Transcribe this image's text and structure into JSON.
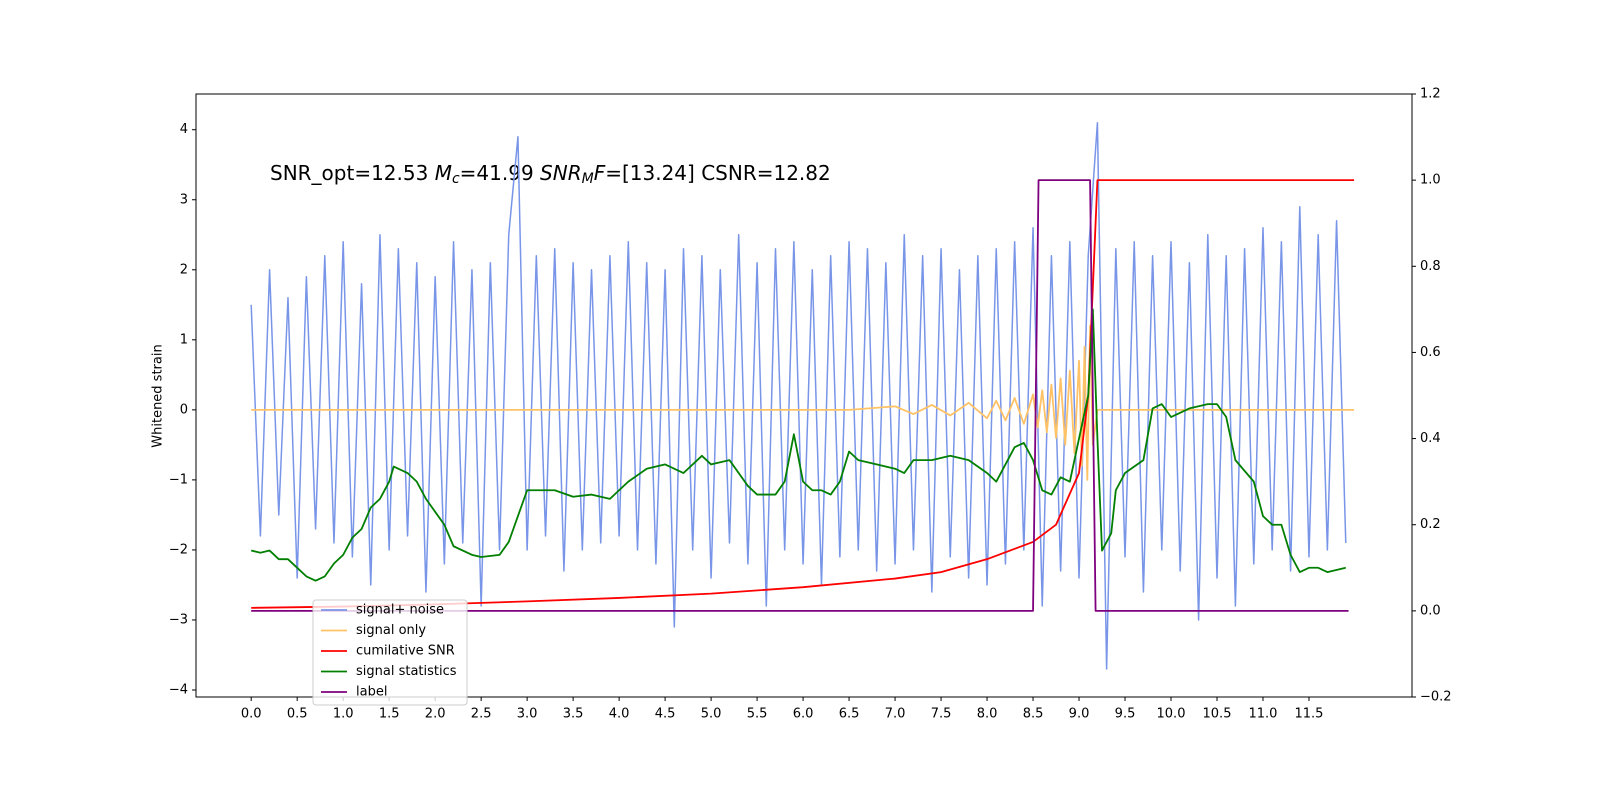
{
  "chart_data": {
    "type": "line",
    "ylabel": "Whitened strain",
    "annotation_parts": [
      "SNR_opt=12.53 ",
      "M",
      "c",
      "=41.99 ",
      "SNR",
      "M",
      "F",
      "=[13.24] CSNR=12.82"
    ],
    "xlim": [
      -0.6,
      12.62
    ],
    "ylim": [
      -4.1,
      4.51
    ],
    "y2lim": [
      -0.2,
      1.2
    ],
    "xticks": [
      {
        "value": 0,
        "label": "0.0"
      },
      0.5,
      {
        "value": 1,
        "label": "1.0"
      },
      1.5,
      {
        "value": 2,
        "label": "2.0"
      },
      2.5,
      {
        "value": 3,
        "label": "3.0"
      },
      3.5,
      {
        "value": 4,
        "label": "4.0"
      },
      4.5,
      {
        "value": 5,
        "label": "5.0"
      },
      5.5,
      {
        "value": 6,
        "label": "6.0"
      },
      6.5,
      {
        "value": 7,
        "label": "7.0"
      },
      7.5,
      {
        "value": 8,
        "label": "8.0"
      },
      8.5,
      {
        "value": 9,
        "label": "9.0"
      },
      9.5,
      {
        "value": 10,
        "label": "10.0"
      },
      10.5,
      {
        "value": 11,
        "label": "11.0"
      },
      11.5
    ],
    "yticks": [
      {
        "value": -4,
        "label": "−4"
      },
      {
        "value": -3,
        "label": "−3"
      },
      {
        "value": -2,
        "label": "−2"
      },
      {
        "value": -1,
        "label": "−1"
      },
      0,
      1,
      2,
      3,
      4
    ],
    "y2ticks": [
      {
        "value": -0.2,
        "label": "−0.2"
      },
      {
        "value": 0,
        "label": "0.0"
      },
      0.2,
      0.4,
      0.6,
      0.8,
      {
        "value": 1,
        "label": "1.0"
      },
      1.2
    ],
    "legend": "lower left",
    "series": [
      {
        "name": "signal+ noise",
        "color": "#7895e8",
        "axis": "y",
        "x": [
          0,
          0.1,
          0.2,
          0.3,
          0.4,
          0.5,
          0.6,
          0.7,
          0.8,
          0.9,
          1,
          1.1,
          1.2,
          1.3,
          1.4,
          1.5,
          1.6,
          1.7,
          1.8,
          1.9,
          2,
          2.1,
          2.2,
          2.3,
          2.4,
          2.5,
          2.6,
          2.7,
          2.8,
          2.9,
          3,
          3.1,
          3.2,
          3.3,
          3.4,
          3.5,
          3.6,
          3.7,
          3.8,
          3.9,
          4,
          4.1,
          4.2,
          4.3,
          4.4,
          4.5,
          4.6,
          4.7,
          4.8,
          4.9,
          5,
          5.1,
          5.2,
          5.3,
          5.4,
          5.5,
          5.6,
          5.7,
          5.8,
          5.9,
          6,
          6.1,
          6.2,
          6.3,
          6.4,
          6.5,
          6.6,
          6.7,
          6.8,
          6.9,
          7,
          7.1,
          7.2,
          7.3,
          7.4,
          7.5,
          7.6,
          7.7,
          7.8,
          7.9,
          8,
          8.1,
          8.2,
          8.3,
          8.4,
          8.5,
          8.6,
          8.7,
          8.8,
          8.9,
          9,
          9.1,
          9.2,
          9.3,
          9.4,
          9.5,
          9.6,
          9.7,
          9.8,
          9.9,
          10,
          10.1,
          10.2,
          10.3,
          10.4,
          10.5,
          10.6,
          10.7,
          10.8,
          10.9,
          11,
          11.1,
          11.2,
          11.3,
          11.4,
          11.5,
          11.6,
          11.7,
          11.8,
          11.9
        ],
        "values": [
          1.5,
          -1.8,
          2.0,
          -1.5,
          1.6,
          -2.4,
          1.9,
          -1.7,
          2.2,
          -1.9,
          2.4,
          -2.1,
          1.8,
          -2.5,
          2.5,
          -2.0,
          2.3,
          -1.8,
          2.1,
          -2.6,
          1.9,
          -2.2,
          2.4,
          -1.9,
          2.0,
          -2.8,
          2.1,
          -2.0,
          2.5,
          3.9,
          -2.0,
          2.2,
          -1.8,
          2.3,
          -2.3,
          2.1,
          -2.0,
          2.0,
          -1.9,
          2.2,
          -1.8,
          2.4,
          -2.0,
          2.1,
          -2.2,
          2.0,
          -3.1,
          2.3,
          -2.0,
          2.2,
          -2.4,
          2.0,
          -1.9,
          2.5,
          -2.2,
          2.1,
          -2.8,
          2.3,
          -2.0,
          2.4,
          -2.2,
          2.0,
          -2.5,
          2.2,
          -2.1,
          2.4,
          -2.0,
          2.3,
          -2.3,
          2.1,
          -2.2,
          2.5,
          -2.0,
          2.2,
          -2.6,
          2.3,
          -2.1,
          2.0,
          -2.4,
          2.2,
          -2.5,
          2.3,
          -2.2,
          2.4,
          -2.0,
          2.6,
          -2.8,
          2.2,
          -2.3,
          2.4,
          -2.4,
          2.2,
          4.1,
          -3.7,
          2.3,
          -2.1,
          2.4,
          -2.6,
          2.2,
          -2.0,
          2.4,
          -2.3,
          2.1,
          -3.0,
          2.5,
          -2.4,
          2.2,
          -2.8,
          2.3,
          -2.2,
          2.6,
          -2.0,
          2.4,
          -2.3,
          2.9,
          -2.1,
          2.5,
          -2.0,
          2.7,
          -1.9
        ]
      },
      {
        "name": "signal only",
        "color": "#ffc266",
        "axis": "y",
        "x": [
          0,
          6.5,
          7.0,
          7.2,
          7.4,
          7.6,
          7.8,
          8.0,
          8.1,
          8.2,
          8.3,
          8.4,
          8.5,
          8.55,
          8.6,
          8.65,
          8.7,
          8.75,
          8.8,
          8.85,
          8.9,
          8.95,
          9.0,
          9.03,
          9.06,
          9.09,
          9.12,
          9.15,
          9.2,
          11.99
        ],
        "values": [
          0,
          0,
          0.05,
          -0.06,
          0.07,
          -0.08,
          0.1,
          -0.12,
          0.13,
          -0.15,
          0.17,
          -0.2,
          0.22,
          -0.25,
          0.28,
          -0.32,
          0.36,
          -0.4,
          0.45,
          -0.5,
          0.56,
          -0.62,
          0.7,
          -0.8,
          0.9,
          -1.0,
          1.2,
          -0.5,
          0,
          0
        ]
      },
      {
        "name": "cumilative SNR",
        "color": "#ff0000",
        "axis": "y2",
        "x": [
          0,
          1,
          2,
          3,
          4,
          5,
          6,
          7,
          7.5,
          8,
          8.5,
          8.75,
          9.0,
          9.1,
          9.15,
          9.2,
          11.99
        ],
        "values": [
          0.007,
          0.01,
          0.015,
          0.022,
          0.03,
          0.04,
          0.055,
          0.075,
          0.09,
          0.12,
          0.16,
          0.2,
          0.32,
          0.5,
          0.75,
          1.0,
          1.0
        ]
      },
      {
        "name": "signal statistics",
        "color": "#007f00",
        "axis": "y2",
        "x": [
          0,
          0.1,
          0.2,
          0.3,
          0.4,
          0.5,
          0.6,
          0.7,
          0.8,
          0.9,
          1.0,
          1.1,
          1.2,
          1.3,
          1.4,
          1.5,
          1.55,
          1.7,
          1.8,
          1.9,
          2.0,
          2.1,
          2.2,
          2.4,
          2.5,
          2.7,
          2.8,
          2.9,
          3.0,
          3.2,
          3.3,
          3.5,
          3.7,
          3.9,
          4.1,
          4.3,
          4.5,
          4.7,
          4.9,
          5.0,
          5.2,
          5.4,
          5.5,
          5.7,
          5.8,
          5.9,
          6.0,
          6.1,
          6.2,
          6.3,
          6.4,
          6.5,
          6.6,
          6.8,
          7.0,
          7.1,
          7.2,
          7.4,
          7.6,
          7.8,
          8.0,
          8.1,
          8.3,
          8.4,
          8.5,
          8.6,
          8.7,
          8.8,
          8.9,
          9.0,
          9.1,
          9.15,
          9.2,
          9.25,
          9.35,
          9.4,
          9.5,
          9.7,
          9.8,
          9.9,
          10.0,
          10.2,
          10.4,
          10.5,
          10.6,
          10.7,
          10.9,
          11.0,
          11.1,
          11.2,
          11.3,
          11.4,
          11.5,
          11.6,
          11.7,
          11.9
        ],
        "values": [
          0.14,
          0.135,
          0.14,
          0.12,
          0.12,
          0.1,
          0.08,
          0.07,
          0.08,
          0.11,
          0.13,
          0.17,
          0.19,
          0.24,
          0.26,
          0.3,
          0.335,
          0.32,
          0.3,
          0.26,
          0.23,
          0.2,
          0.15,
          0.13,
          0.125,
          0.13,
          0.16,
          0.22,
          0.28,
          0.28,
          0.28,
          0.265,
          0.27,
          0.26,
          0.3,
          0.33,
          0.34,
          0.32,
          0.36,
          0.34,
          0.35,
          0.29,
          0.27,
          0.27,
          0.3,
          0.41,
          0.3,
          0.28,
          0.28,
          0.27,
          0.3,
          0.37,
          0.35,
          0.34,
          0.33,
          0.32,
          0.35,
          0.35,
          0.36,
          0.35,
          0.32,
          0.3,
          0.38,
          0.39,
          0.35,
          0.28,
          0.27,
          0.31,
          0.3,
          0.4,
          0.5,
          0.7,
          0.4,
          0.14,
          0.18,
          0.28,
          0.32,
          0.35,
          0.47,
          0.48,
          0.45,
          0.47,
          0.48,
          0.48,
          0.45,
          0.35,
          0.3,
          0.22,
          0.2,
          0.2,
          0.13,
          0.09,
          0.1,
          0.1,
          0.09,
          0.1
        ]
      },
      {
        "name": "label",
        "color": "#7f007f",
        "axis": "y2",
        "x": [
          0,
          8.5,
          8.56,
          9.12,
          9.18,
          11.93
        ],
        "values": [
          0,
          0,
          1,
          1,
          0,
          0
        ]
      }
    ]
  }
}
